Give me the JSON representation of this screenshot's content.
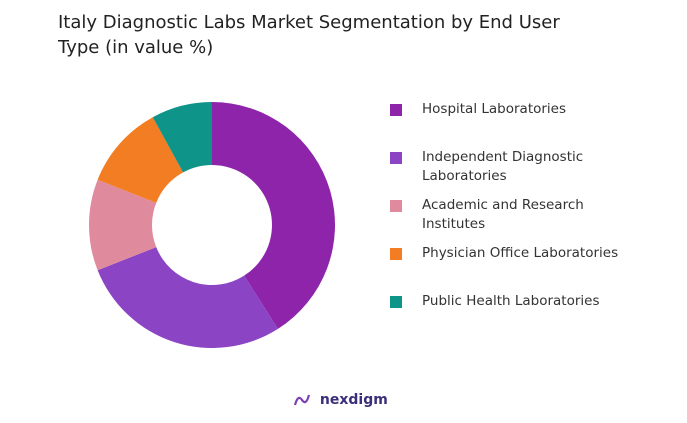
{
  "chart_data": {
    "type": "donut",
    "title": "Italy Diagnostic Labs Market Segmentation by End User Type (in value %)",
    "categories": [
      "Hospital Laboratories",
      "Independent Diagnostic Laboratories",
      "Academic and Research Institutes",
      "Physician Office Laboratories",
      "Public Health Laboratories"
    ],
    "values": [
      41,
      28,
      12,
      11,
      8
    ],
    "colors": [
      "#8e24aa",
      "#8a44c4",
      "#e08a9e",
      "#f27d22",
      "#0e9488"
    ]
  },
  "brand": "nexdigm"
}
